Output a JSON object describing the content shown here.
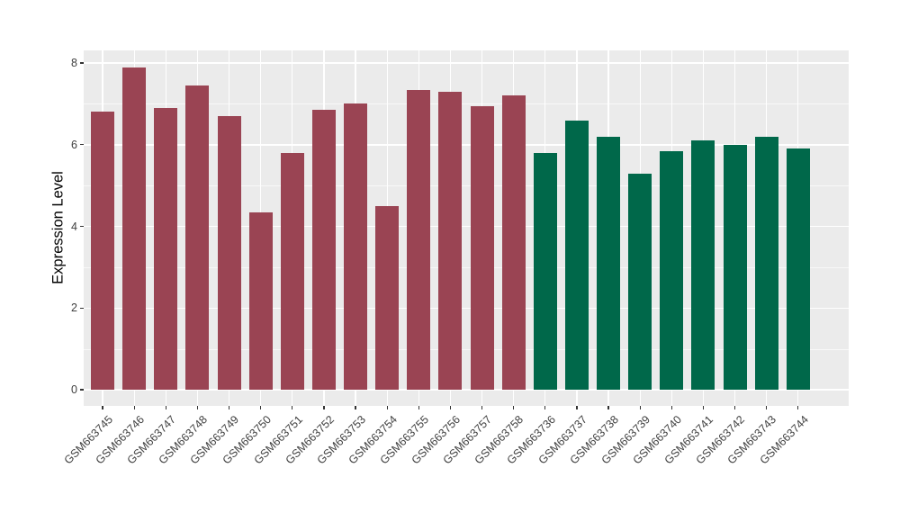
{
  "chart_data": {
    "type": "bar",
    "title": "",
    "xlabel": "",
    "ylabel": "Expression Level",
    "ylim": [
      0,
      8
    ],
    "yticks": [
      0,
      2,
      4,
      6,
      8
    ],
    "yticks_minor": [
      1,
      3,
      5,
      7
    ],
    "grid": "white major and minor gridlines on gray panel",
    "legend": "none",
    "x_label_angle_deg": 45,
    "categories": [
      "GSM663745",
      "GSM663746",
      "GSM663747",
      "GSM663748",
      "GSM663749",
      "GSM663750",
      "GSM663751",
      "GSM663752",
      "GSM663753",
      "GSM663754",
      "GSM663755",
      "GSM663756",
      "GSM663757",
      "GSM663758",
      "GSM663736",
      "GSM663737",
      "GSM663738",
      "GSM663739",
      "GSM663740",
      "GSM663741",
      "GSM663742",
      "GSM663743",
      "GSM663744"
    ],
    "values": [
      6.8,
      7.9,
      6.9,
      7.45,
      6.7,
      4.35,
      5.8,
      6.85,
      7.0,
      4.5,
      7.35,
      7.3,
      6.95,
      7.2,
      5.8,
      6.6,
      6.2,
      5.3,
      5.85,
      6.1,
      6.0,
      6.2,
      5.9
    ],
    "colors": [
      "#9A4453",
      "#9A4453",
      "#9A4453",
      "#9A4453",
      "#9A4453",
      "#9A4453",
      "#9A4453",
      "#9A4453",
      "#9A4453",
      "#9A4453",
      "#9A4453",
      "#9A4453",
      "#9A4453",
      "#9A4453",
      "#00684A",
      "#00684A",
      "#00684A",
      "#00684A",
      "#00684A",
      "#00684A",
      "#00684A",
      "#00684A",
      "#00684A"
    ],
    "group_colors": {
      "maroon_group": "#9A4453",
      "green_group": "#00684A"
    }
  },
  "style": {
    "panel_background": "#EBEBEB",
    "figure_background": "#FFFFFF",
    "gridline_color": "#FFFFFF",
    "axis_text_color": "#404040",
    "axis_title_color": "#000000",
    "tick_mark_color": "#333333"
  }
}
